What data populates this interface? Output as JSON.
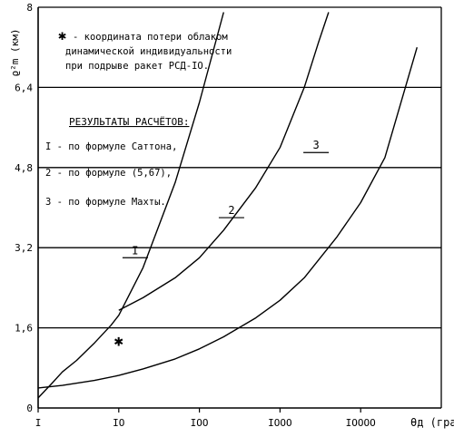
{
  "chart_data": {
    "type": "line",
    "ylabel": "ϱ²m (км)",
    "xlabel": "θд (град)",
    "x_scale": "log",
    "xlim": [
      1,
      100000
    ],
    "ylim": [
      0,
      8
    ],
    "grid": true,
    "x_ticks": [
      1,
      10,
      100,
      1000,
      10000
    ],
    "x_tick_labels": [
      "I",
      "IO",
      "IOO",
      "IOOO",
      "IOOOO"
    ],
    "y_ticks": [
      0,
      1.6,
      3.2,
      4.8,
      6.4,
      8
    ],
    "y_tick_labels": [
      "0",
      "1,6",
      "3,2",
      "4,8",
      "6,4",
      "8"
    ],
    "legend": {
      "marker_note": "координата потери облаком динамической индивидуальности при подрыве ракет РСД-IO.",
      "marker_symbol": "✱",
      "results_title": "РЕЗУЛЬТАТЫ РАСЧЁТОВ:",
      "entries": [
        "I - по формуле Саттона,",
        "2 - по формуле (5,67),",
        "3 - по формуле Махты."
      ]
    },
    "series": [
      {
        "label": "I",
        "x": [
          1,
          1.5,
          2,
          3,
          5,
          8,
          10,
          20,
          50,
          100,
          200
        ],
        "y": [
          0.2,
          0.5,
          0.72,
          0.95,
          1.3,
          1.65,
          1.85,
          2.8,
          4.5,
          6.1,
          7.9
        ]
      },
      {
        "label": "2",
        "x": [
          10,
          20,
          50,
          100,
          200,
          500,
          1000,
          2000,
          3000,
          4000
        ],
        "y": [
          1.95,
          2.2,
          2.6,
          3.0,
          3.55,
          4.4,
          5.2,
          6.4,
          7.3,
          7.9
        ]
      },
      {
        "label": "3",
        "x": [
          1,
          2,
          5,
          10,
          20,
          50,
          100,
          200,
          500,
          1000,
          2000,
          5000,
          10000,
          20000,
          50000
        ],
        "y": [
          0.4,
          0.45,
          0.55,
          0.65,
          0.78,
          0.98,
          1.18,
          1.42,
          1.8,
          2.15,
          2.6,
          3.4,
          4.1,
          5.0,
          7.2
        ]
      }
    ],
    "marker_point": {
      "x": 10,
      "y": 1.35
    }
  }
}
